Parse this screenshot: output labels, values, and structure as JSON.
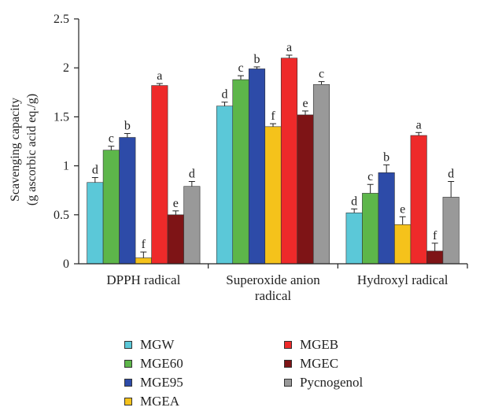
{
  "chart_data": {
    "type": "bar",
    "ylabel": "Scavenging capacity",
    "ylabel2": "(g ascorbic acid eq./g)",
    "ylim": [
      0,
      2.5
    ],
    "yticks": [
      "0",
      "0.5",
      "1",
      "1.5",
      "2",
      "2.5"
    ],
    "ytick_values": [
      0,
      0.5,
      1,
      1.5,
      2,
      2.5
    ],
    "categories": [
      [
        "DPPH radical"
      ],
      [
        "Superoxide anion",
        "radical"
      ],
      [
        "Hydroxyl radical"
      ]
    ],
    "series": [
      {
        "name": "MGW",
        "color": "#5bc8d8",
        "values": [
          0.83,
          1.61,
          0.52
        ],
        "errors": [
          0.05,
          0.04,
          0.04
        ],
        "labels": [
          "d",
          "d",
          "d"
        ]
      },
      {
        "name": "MGE60",
        "color": "#5db64a",
        "values": [
          1.16,
          1.88,
          0.72
        ],
        "errors": [
          0.04,
          0.04,
          0.09
        ],
        "labels": [
          "c",
          "c",
          "c"
        ]
      },
      {
        "name": "MGE95",
        "color": "#2d4ba8",
        "values": [
          1.29,
          1.99,
          0.93
        ],
        "errors": [
          0.04,
          0.02,
          0.08
        ],
        "labels": [
          "b",
          "b",
          "b"
        ]
      },
      {
        "name": "MGEA",
        "color": "#f5c21b",
        "values": [
          0.06,
          1.4,
          0.4
        ],
        "errors": [
          0.06,
          0.03,
          0.08
        ],
        "labels": [
          "f",
          "f",
          "e"
        ]
      },
      {
        "name": "MGEB",
        "color": "#ee2a2a",
        "values": [
          1.82,
          2.1,
          1.31
        ],
        "errors": [
          0.02,
          0.03,
          0.03
        ],
        "labels": [
          "a",
          "a",
          "a"
        ]
      },
      {
        "name": "MGEC",
        "color": "#7e1416",
        "values": [
          0.5,
          1.52,
          0.13
        ],
        "errors": [
          0.04,
          0.04,
          0.08
        ],
        "labels": [
          "e",
          "e",
          "f"
        ]
      },
      {
        "name": "Pycnogenol",
        "color": "#999999",
        "values": [
          0.79,
          1.83,
          0.68
        ],
        "errors": [
          0.05,
          0.03,
          0.16
        ],
        "labels": [
          "d",
          "c",
          "d"
        ]
      }
    ],
    "legend": "bottom"
  }
}
